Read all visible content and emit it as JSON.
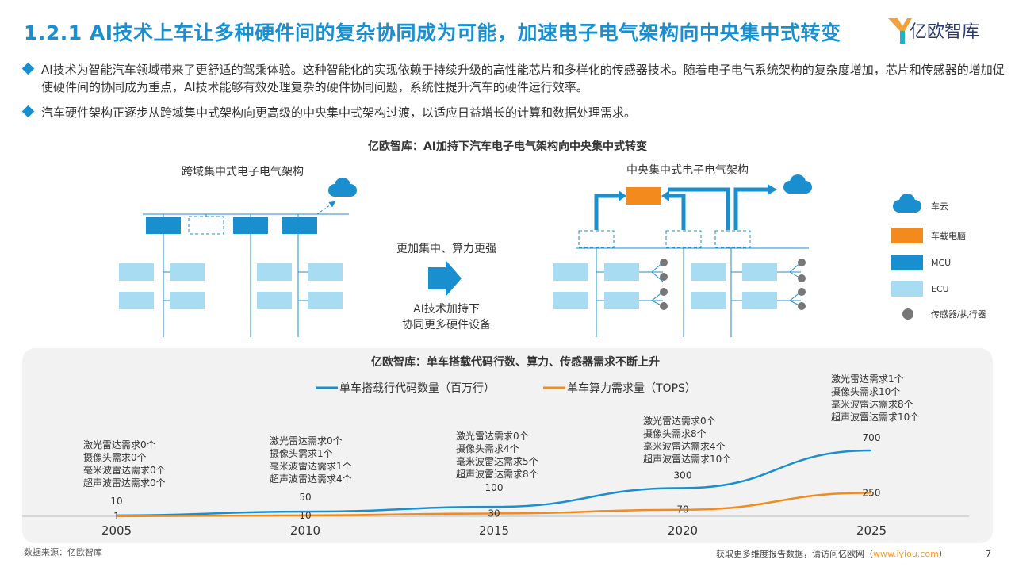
{
  "header": {
    "title": "1.2.1 AI技术上车让多种硬件间的复杂协同成为可能，加速电子电气架构向中央集中式转变",
    "logo_text": "亿欧智库"
  },
  "bullets": [
    "AI技术为智能汽车领域带来了更舒适的驾乘体验。这种智能化的实现依赖于持续升级的高性能芯片和多样化的传感器技术。随着电子电气系统架构的复杂度增加，芯片和传感器的增加促使硬件间的协同成为重点，AI技术能够有效处理复杂的硬件协同问题，系统性提升汽车的硬件运行效率。",
    "汽车硬件架构正逐步从跨域集中式架构向更高级的中央集中式架构过渡，以适应日益增长的计算和数据处理需求。"
  ],
  "diagram": {
    "title": "亿欧智库：AI加持下汽车电子电气架构向中央集中式转变",
    "left_label": "跨域集中式电子电气架构",
    "right_label": "中央集中式电子电气架构",
    "arrow_top": "更加集中、算力更强",
    "arrow_bottom_1": "AI技术加持下",
    "arrow_bottom_2": "协同更多硬件设备",
    "legend": [
      {
        "label": "车云",
        "icon": "cloud-icon",
        "color": "#1a8fd0"
      },
      {
        "label": "车载电脑",
        "icon": "square",
        "color": "#f28a1e"
      },
      {
        "label": "MCU",
        "icon": "square",
        "color": "#1a8fd0"
      },
      {
        "label": "ECU",
        "icon": "square",
        "color": "#a8dcf2"
      },
      {
        "label": "传感器/执行器",
        "icon": "circle",
        "color": "#777777"
      }
    ]
  },
  "chart_data": {
    "type": "line",
    "title": "亿欧智库：单车搭载代码行数、算力、传感器需求不断上升",
    "x": [
      "2005",
      "2010",
      "2015",
      "2020",
      "2025"
    ],
    "series": [
      {
        "name": "单车搭载行代码数量（百万行）",
        "color": "#1a8fd0",
        "values": [
          10,
          50,
          100,
          300,
          700
        ],
        "labels": [
          "10",
          "50",
          "100",
          "300",
          "700"
        ]
      },
      {
        "name": "单车算力需求量（TOPS）",
        "color": "#f28a1e",
        "values": [
          1,
          10,
          30,
          70,
          250
        ],
        "labels": [
          "1",
          "10",
          "30",
          "70",
          "250"
        ]
      }
    ],
    "ylim": [
      0,
      800
    ],
    "annotations": [
      [
        "激光雷达需求0个",
        "摄像头需求0个",
        "毫米波雷达需求0个",
        "超声波雷达需求0个"
      ],
      [
        "激光雷达需求0个",
        "摄像头需求1个",
        "毫米波雷达需求1个",
        "超声波雷达需求4个"
      ],
      [
        "激光雷达需求0个",
        "摄像头需求4个",
        "毫米波雷达需求5个",
        "超声波雷达需求8个"
      ],
      [
        "激光雷达需求0个",
        "摄像头需求8个",
        "毫米波雷达需求4个",
        "超声波雷达需求10个"
      ],
      [
        "激光雷达需求1个",
        "摄像头需求10个",
        "毫米波雷达需求8个",
        "超声波雷达需求10个"
      ]
    ]
  },
  "footer": {
    "source": "数据来源：亿欧智库",
    "more_prefix": "获取更多维度报告数据，请访问亿欧网（",
    "link": "www.iyiou.com",
    "more_suffix": "）",
    "page": "7"
  }
}
